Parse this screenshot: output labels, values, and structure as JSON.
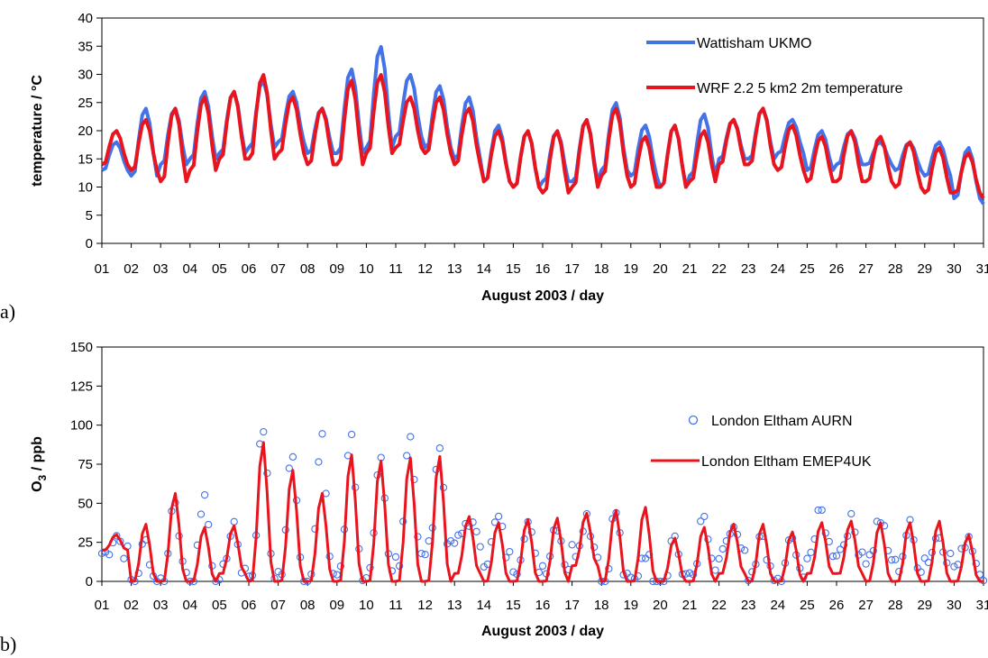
{
  "chart_data": [
    {
      "panel_label": "a)",
      "type": "line",
      "xlabel": "August 2003 / day",
      "ylabel": "temperature / °C",
      "ylim": [
        0,
        40
      ],
      "xlim": [
        1,
        31
      ],
      "x_tick_labels": [
        "01",
        "02",
        "03",
        "04",
        "05",
        "06",
        "07",
        "08",
        "09",
        "10",
        "11",
        "12",
        "13",
        "14",
        "15",
        "16",
        "17",
        "18",
        "19",
        "20",
        "21",
        "22",
        "23",
        "24",
        "25",
        "26",
        "27",
        "28",
        "29",
        "30",
        "31"
      ],
      "y_tick_labels": [
        "0",
        "5",
        "10",
        "15",
        "20",
        "25",
        "30",
        "35",
        "40"
      ],
      "legend_position": "top-right",
      "grid": false,
      "daily_max_min_note_free": true,
      "series": [
        {
          "name": "Wattisham UKMO",
          "color": "#4472e8",
          "daily_max": [
            18,
            24,
            24,
            27,
            27,
            29,
            27,
            24,
            31,
            35,
            30,
            28,
            26,
            21,
            20,
            20,
            22,
            25,
            21,
            21,
            23,
            22,
            24,
            22,
            20,
            20,
            18,
            18,
            18,
            17,
            17
          ],
          "daily_min": [
            13,
            12,
            14,
            15,
            16,
            17,
            18,
            16,
            16,
            17,
            19,
            17,
            15,
            11,
            10,
            11,
            11,
            13,
            12,
            10,
            12,
            15,
            15,
            16,
            13,
            14,
            14,
            13,
            12,
            8,
            7
          ]
        },
        {
          "name": "WRF 2.2 5 km2 2m temperature",
          "color": "#e8141e",
          "daily_max": [
            20,
            22,
            24,
            26,
            27,
            30,
            26,
            24,
            29,
            30,
            26,
            26,
            24,
            20,
            20,
            20,
            22,
            24,
            19,
            21,
            20,
            22,
            24,
            21,
            19,
            20,
            19,
            18,
            17,
            16,
            16
          ],
          "daily_min": [
            14,
            13,
            11,
            13,
            15,
            15,
            16,
            14,
            14,
            16,
            17,
            16,
            14,
            11,
            10,
            9,
            10,
            12,
            10,
            10,
            11,
            14,
            14,
            13,
            11,
            11,
            11,
            10,
            9,
            9,
            8
          ]
        }
      ]
    },
    {
      "panel_label": "b)",
      "type": "line",
      "xlabel": "August 2003 / day",
      "ylabel_main": "O",
      "ylabel_sub": "3",
      "ylabel_rest": " / ppb",
      "ylim": [
        0,
        150
      ],
      "xlim": [
        1,
        31
      ],
      "x_tick_labels": [
        "01",
        "02",
        "03",
        "04",
        "05",
        "06",
        "07",
        "08",
        "09",
        "10",
        "11",
        "12",
        "13",
        "14",
        "15",
        "16",
        "17",
        "18",
        "19",
        "20",
        "21",
        "22",
        "23",
        "24",
        "25",
        "26",
        "27",
        "28",
        "29",
        "30",
        "31"
      ],
      "y_tick_labels": [
        "0",
        "25",
        "50",
        "75",
        "100",
        "125",
        "150"
      ],
      "legend_position": "top-right",
      "grid": false,
      "series": [
        {
          "name": "London Eltham AURN",
          "marker": "circle",
          "color": "#4472e8",
          "daily_max": [
            30,
            25,
            55,
            57,
            38,
            100,
            85,
            90,
            98,
            75,
            97,
            85,
            40,
            40,
            38,
            38,
            42,
            45,
            20,
            30,
            40,
            35,
            30,
            28,
            44,
            38,
            40,
            35,
            30,
            30,
            30
          ],
          "daily_min": [
            18,
            0,
            0,
            0,
            5,
            5,
            5,
            5,
            5,
            5,
            15,
            20,
            25,
            15,
            10,
            10,
            20,
            0,
            0,
            0,
            5,
            15,
            0,
            0,
            20,
            20,
            15,
            10,
            15,
            10,
            5
          ]
        },
        {
          "name": "London Eltham EMEP4UK",
          "color": "#e8141e",
          "daily_max": [
            30,
            37,
            57,
            35,
            36,
            90,
            72,
            57,
            82,
            78,
            80,
            81,
            42,
            38,
            40,
            41,
            44,
            46,
            48,
            28,
            35,
            37,
            37,
            32,
            38,
            39,
            38,
            38,
            39,
            30,
            35
          ],
          "daily_min": [
            20,
            0,
            0,
            0,
            5,
            0,
            0,
            0,
            0,
            0,
            0,
            0,
            5,
            0,
            0,
            0,
            10,
            0,
            0,
            0,
            0,
            5,
            0,
            0,
            5,
            5,
            0,
            0,
            0,
            0,
            0
          ]
        }
      ]
    }
  ]
}
